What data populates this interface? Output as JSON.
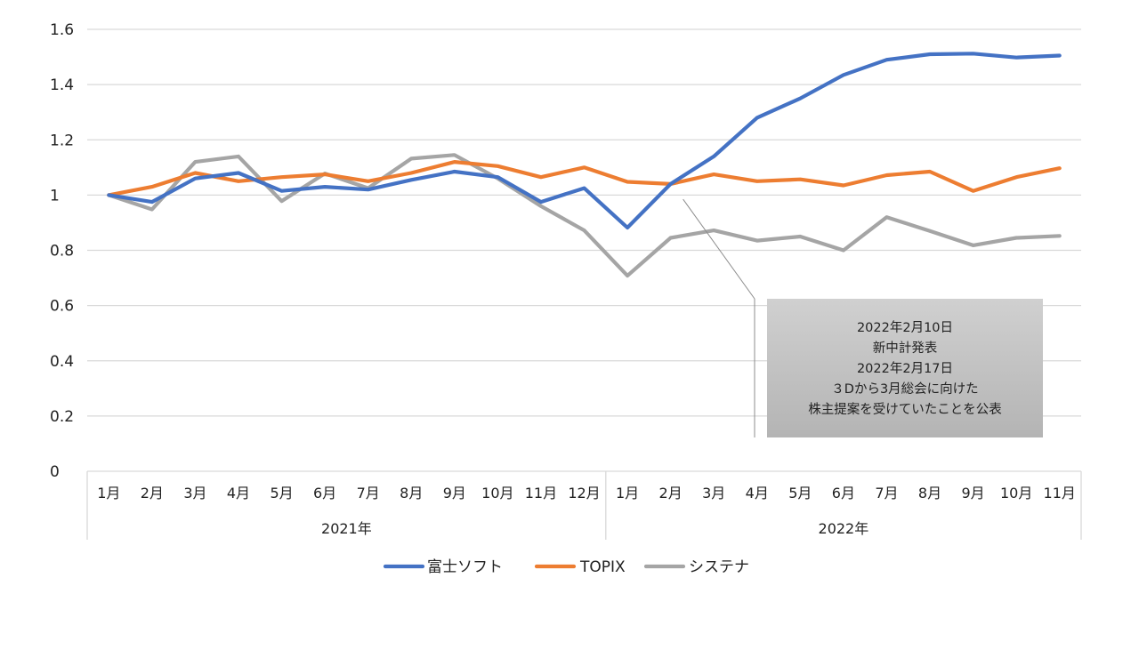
{
  "chart_data": {
    "type": "line",
    "title": "",
    "xlabel": "",
    "ylabel": "",
    "ylim": [
      0,
      1.6
    ],
    "yticks": [
      "0",
      "0.2",
      "0.4",
      "0.6",
      "0.8",
      "1",
      "1.2",
      "1.4",
      "1.6"
    ],
    "grid": true,
    "legend_position": "bottom",
    "year_groups": [
      {
        "label": "2021年",
        "months": [
          "1月",
          "2月",
          "3月",
          "4月",
          "5月",
          "6月",
          "7月",
          "8月",
          "9月",
          "10月",
          "11月",
          "12月"
        ]
      },
      {
        "label": "2022年",
        "months": [
          "1月",
          "2月",
          "3月",
          "4月",
          "5月",
          "6月",
          "7月",
          "8月",
          "9月",
          "10月",
          "11月"
        ]
      }
    ],
    "series": [
      {
        "name": "富士ソフト",
        "color": "#4472C4",
        "values": [
          1.0,
          0.975,
          1.06,
          1.08,
          1.015,
          1.03,
          1.02,
          1.055,
          1.085,
          1.065,
          0.975,
          1.025,
          0.882,
          1.04,
          1.14,
          1.28,
          1.35,
          1.435,
          1.49,
          1.51,
          1.512,
          1.498,
          1.505
        ]
      },
      {
        "name": "TOPIX",
        "color": "#ED7D31",
        "values": [
          1.0,
          1.03,
          1.08,
          1.05,
          1.065,
          1.075,
          1.05,
          1.08,
          1.12,
          1.105,
          1.065,
          1.1,
          1.048,
          1.04,
          1.075,
          1.05,
          1.057,
          1.035,
          1.072,
          1.085,
          1.015,
          1.065,
          1.097
        ]
      },
      {
        "name": "システナ",
        "color": "#A5A5A5",
        "values": [
          1.0,
          0.948,
          1.12,
          1.14,
          0.978,
          1.078,
          1.025,
          1.132,
          1.145,
          1.06,
          0.96,
          0.872,
          0.708,
          0.845,
          0.872,
          0.835,
          0.85,
          0.8,
          0.92,
          0.87,
          0.818,
          0.845,
          0.852
        ]
      }
    ],
    "annotation": {
      "lines": [
        "2022年2月10日",
        "新中計発表",
        "2022年2月17日",
        "３Dから3月総会に向けた",
        "株主提案を受けていたことを公表"
      ],
      "points_to": "2022年2月",
      "fill": "#BFBFBF"
    }
  }
}
